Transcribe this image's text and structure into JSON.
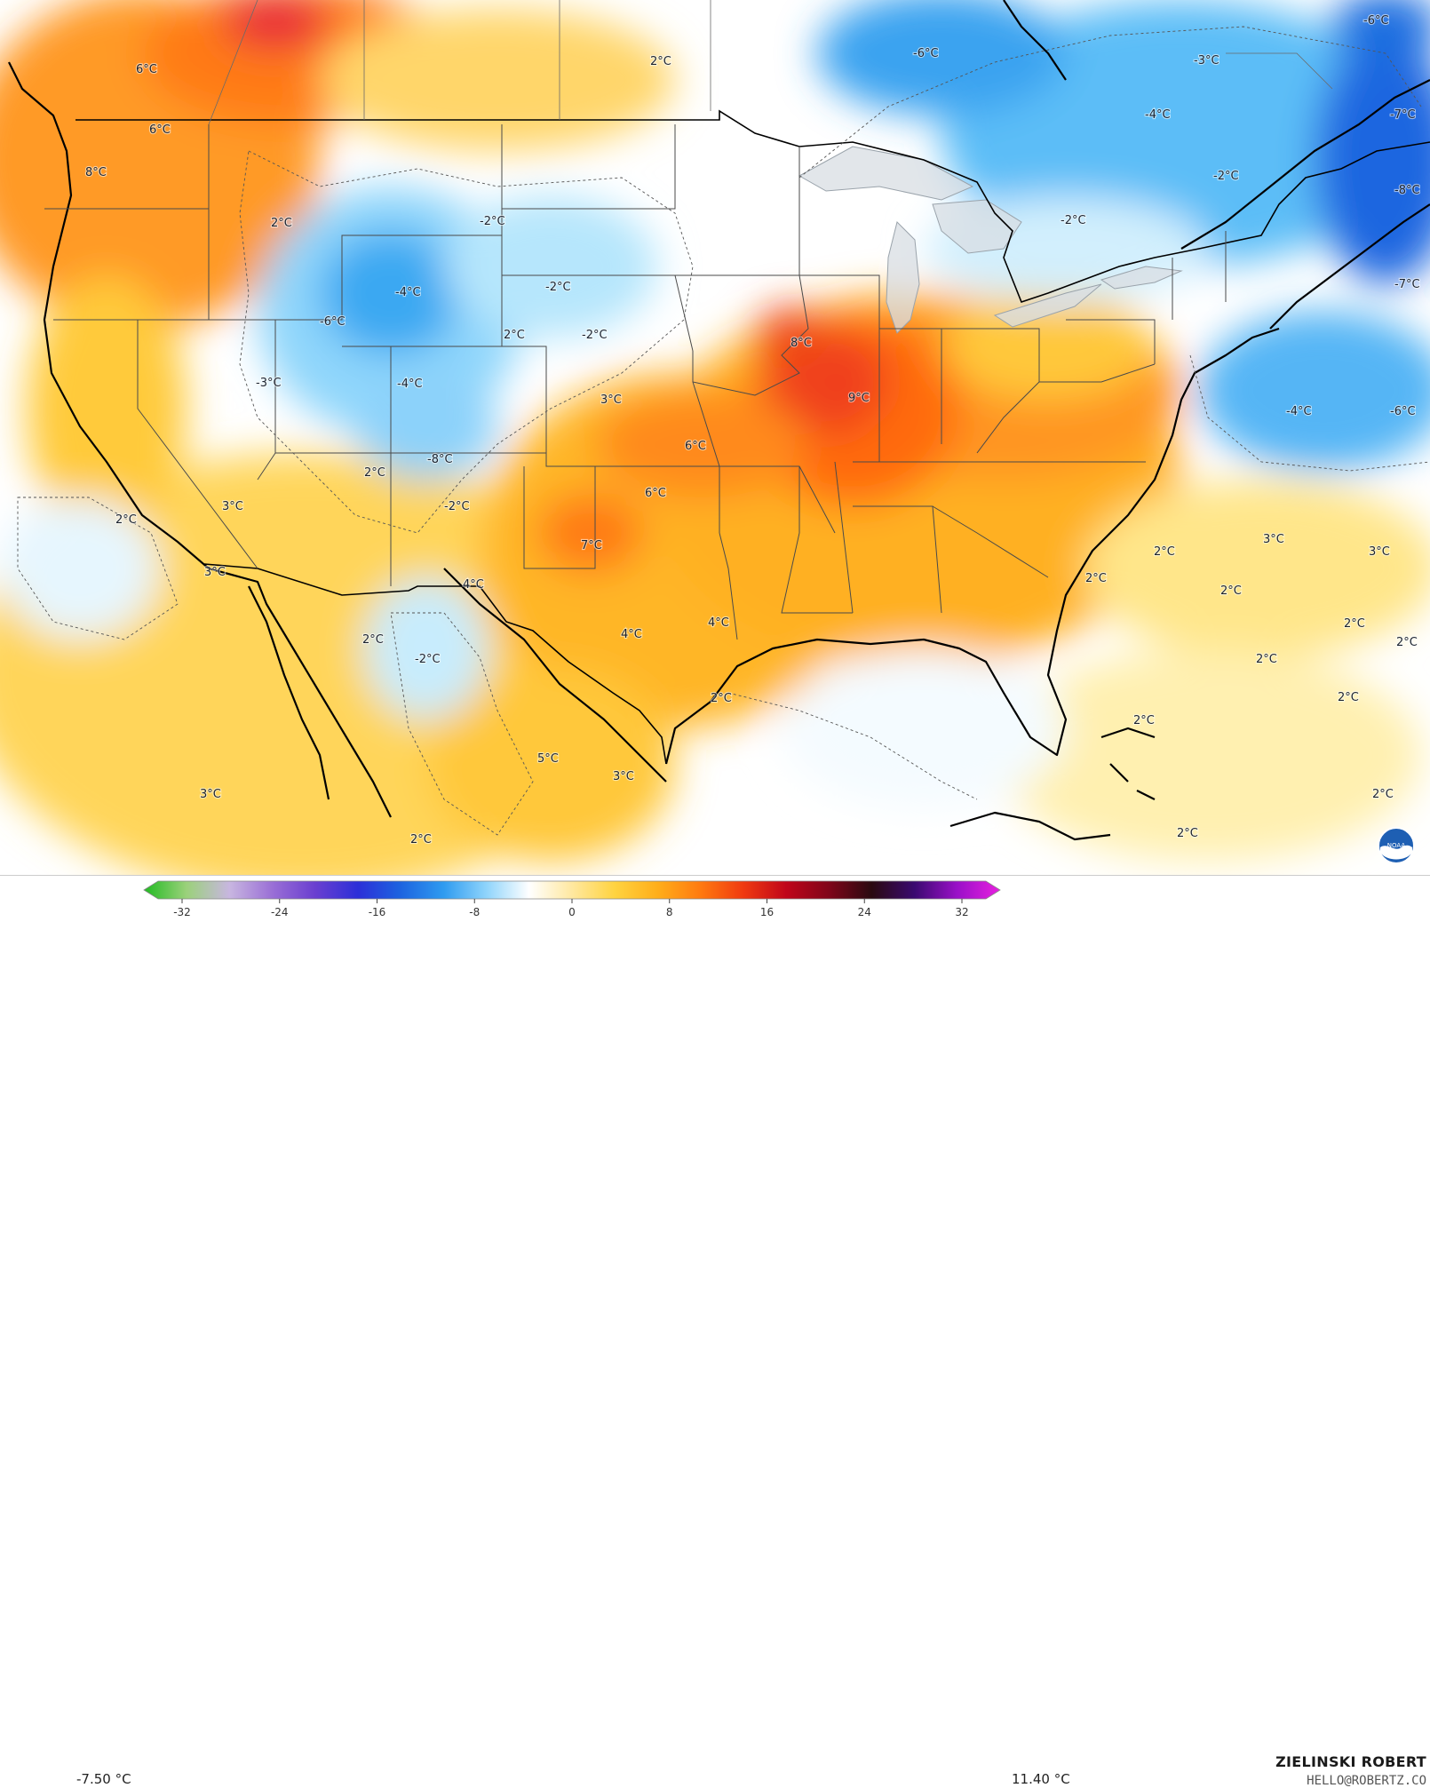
{
  "map": {
    "labels": [
      "6°C",
      "6°C",
      "8°C",
      "2°C",
      "2°C",
      "-6°C",
      "-3°C",
      "-6°C",
      "-7°C",
      "-4°C",
      "-2°C",
      "-2°C",
      "-2°C",
      "-4°C",
      "-2°C",
      "2°C",
      "-2°C",
      "-6°C",
      "-3°C",
      "-4°C",
      "8°C",
      "9°C",
      "3°C",
      "6°C",
      "-8°C",
      "2°C",
      "-2°C",
      "6°C",
      "3°C",
      "2°C",
      "7°C",
      "3°C",
      "4°C",
      "-4°C",
      "-6°C",
      "2°C",
      "3°C",
      "3°C",
      "2°C",
      "2°C",
      "2°C",
      "4°C",
      "4°C",
      "-2°C",
      "2°C",
      "2°C",
      "2°C",
      "2°C",
      "2°C",
      "2°C",
      "5°C",
      "3°C",
      "3°C",
      "2°C",
      "2°C",
      "2°C",
      "-8°C",
      "-7°C"
    ]
  },
  "legend": {
    "min_label": "-7.50 °C",
    "max_label": "11.40 °C",
    "ticks": [
      "-32",
      "-24",
      "-16",
      "-8",
      "0",
      "8",
      "16",
      "24",
      "32"
    ],
    "colors": [
      "#22bb22",
      "#9bd17b",
      "#c8b6e0",
      "#9a6fd6",
      "#6a3fd0",
      "#2c2fd8",
      "#1d64e0",
      "#2f9bf0",
      "#8fd4fb",
      "#ffffff",
      "#ffe8a0",
      "#ffd340",
      "#ffae1a",
      "#ff7a10",
      "#f03a10",
      "#c0061a",
      "#80061a",
      "#2a0a10",
      "#3a0a70",
      "#9a10c8",
      "#e820e0"
    ]
  },
  "credit": {
    "name": "ZIELINSKI ROBERT",
    "email": "HELLO@ROBERTZ.CO"
  },
  "logo": {
    "text": "NOAA"
  }
}
